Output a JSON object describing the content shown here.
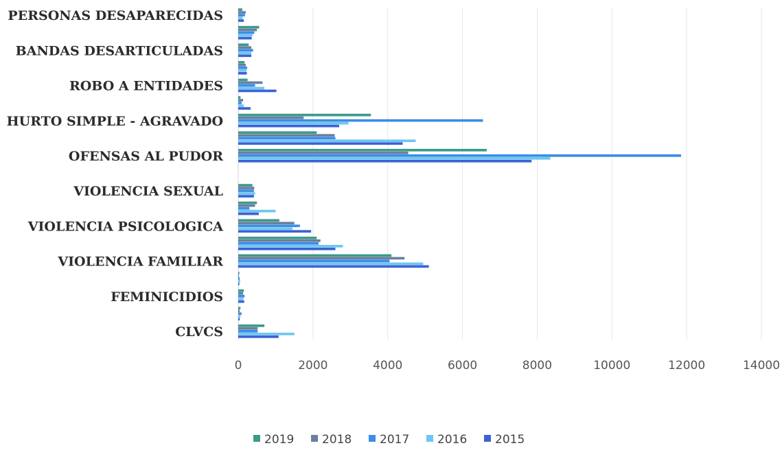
{
  "chart_data": {
    "type": "bar",
    "orientation": "horizontal",
    "categories": [
      "CLVCS",
      "",
      "FEMINICIDIOS",
      "",
      "VIOLENCIA FAMILIAR",
      "",
      "VIOLENCIA PSICOLOGICA",
      "",
      "VIOLENCIA SEXUAL",
      "",
      "OFENSAS AL PUDOR",
      "",
      "HURTO SIMPLE - AGRAVADO",
      "",
      "ROBO A ENTIDADES",
      "",
      "BANDAS DESARTICULADAS",
      "",
      "PERSONAS DESAPARECIDAS"
    ],
    "series": [
      {
        "name": "2019",
        "color": "#3d9a8b",
        "values": [
          700,
          60,
          150,
          30,
          4100,
          2100,
          1100,
          500,
          380,
          0,
          6650,
          2100,
          3550,
          60,
          250,
          170,
          280,
          560,
          110
        ]
      },
      {
        "name": "2018",
        "color": "#6a7fa0",
        "values": [
          520,
          40,
          130,
          20,
          4450,
          2200,
          1500,
          450,
          430,
          0,
          4550,
          2580,
          1750,
          130,
          650,
          200,
          350,
          500,
          200
        ]
      },
      {
        "name": "2017",
        "color": "#3a8ee6",
        "values": [
          520,
          90,
          170,
          40,
          4050,
          2150,
          1650,
          300,
          420,
          0,
          11850,
          2600,
          6550,
          90,
          450,
          240,
          400,
          430,
          180
        ]
      },
      {
        "name": "2016",
        "color": "#6ec6f2",
        "values": [
          1500,
          60,
          140,
          50,
          4950,
          2800,
          1450,
          1000,
          450,
          0,
          8350,
          4750,
          2950,
          150,
          700,
          220,
          350,
          380,
          120
        ]
      },
      {
        "name": "2015",
        "color": "#3b63d4",
        "values": [
          1080,
          40,
          160,
          30,
          5100,
          2600,
          1950,
          550,
          420,
          0,
          7850,
          4400,
          2700,
          330,
          1020,
          230,
          350,
          360,
          150
        ]
      }
    ],
    "xlim": [
      0,
      14000
    ],
    "xticks": [
      "0",
      "2000",
      "4000",
      "6000",
      "8000",
      "10000",
      "12000",
      "14000"
    ],
    "grid": true,
    "legend_position": "bottom"
  }
}
